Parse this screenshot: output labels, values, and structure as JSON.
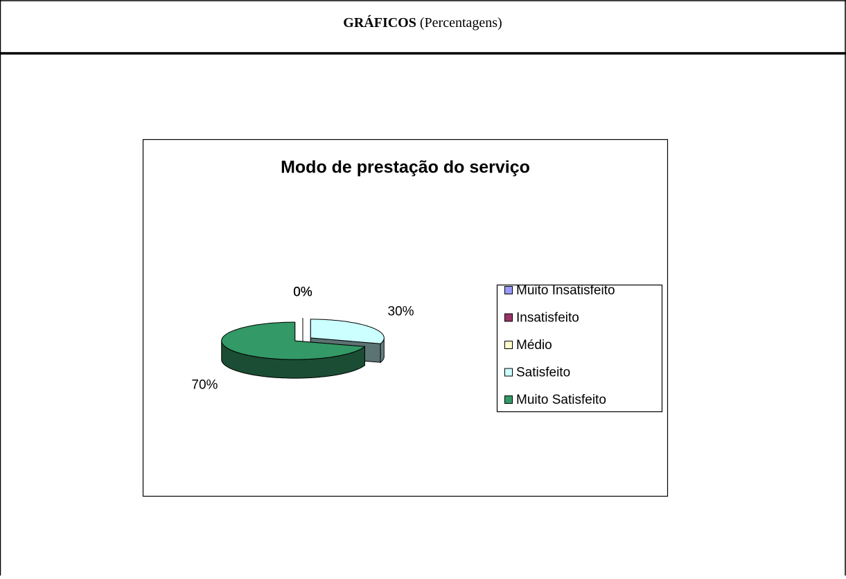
{
  "header": {
    "title_bold": "GRÁFICOS",
    "title_rest": "(Percentagens)"
  },
  "chart_data": {
    "type": "pie",
    "title": "Modo de prestação do serviço",
    "categories": [
      "Muito Insatisfeito",
      "Insatisfeito",
      "Médio",
      "Satisfeito",
      "Muito Satisfeito"
    ],
    "values": [
      0,
      0,
      0,
      30,
      70
    ],
    "value_labels": [
      "0%",
      "0%",
      "0%",
      "30%",
      "70%"
    ],
    "colors": [
      "#9999ff",
      "#993366",
      "#ffffcc",
      "#ccffff",
      "#339966"
    ],
    "legend": "right",
    "exploded": true,
    "three_d": true
  }
}
